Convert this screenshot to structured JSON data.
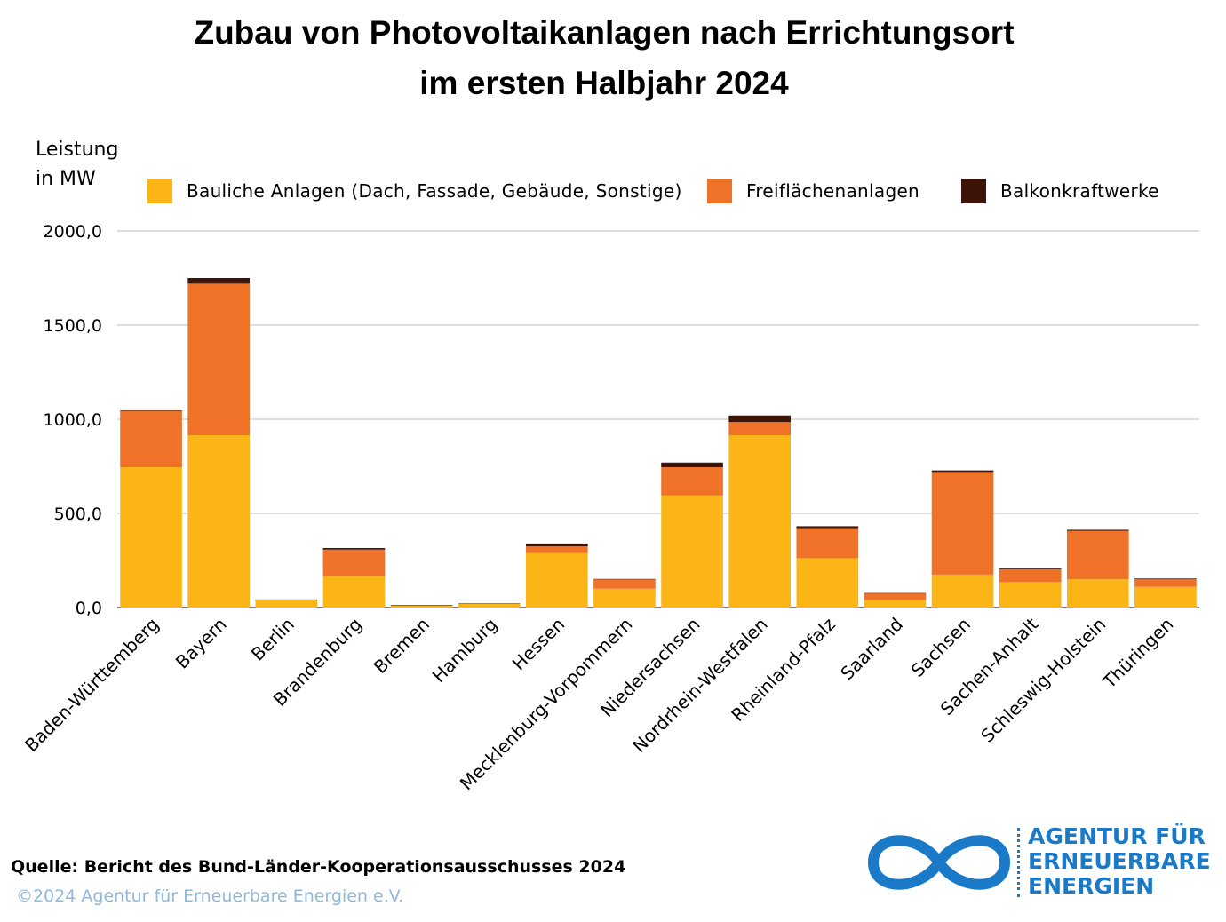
{
  "header": {
    "title_line1": "Zubau von Photovoltaikanlagen nach Errichtungsort",
    "title_line2": "im ersten Halbjahr 2024"
  },
  "chart_data": {
    "type": "bar",
    "stacked": true,
    "ylabel_line1": "Leistung",
    "ylabel_line2": "in MW",
    "ylim": [
      0,
      2000
    ],
    "yticks": [
      "0,0",
      "500,0",
      "1000,0",
      "1500,0",
      "2000,0"
    ],
    "ytick_values": [
      0,
      500,
      1000,
      1500,
      2000
    ],
    "grid": true,
    "legend_position": "top",
    "categories": [
      "Baden-Württemberg",
      "Bayern",
      "Berlin",
      "Brandenburg",
      "Bremen",
      "Hamburg",
      "Hessen",
      "Mecklenburg-Vorpommern",
      "Niedersachsen",
      "Nordrhein-Westfalen",
      "Rheinland-Pfalz",
      "Saarland",
      "Sachsen",
      "Sachen-Anhalt",
      "Schleswig-Holstein",
      "Thüringen"
    ],
    "series": [
      {
        "name": "Bauliche Anlagen (Dach, Fassade, Gebäude, Sonstige)",
        "color": "#fbb516",
        "values": [
          745,
          915,
          40,
          168,
          12,
          20,
          290,
          100,
          595,
          915,
          262,
          40,
          175,
          135,
          150,
          110
        ]
      },
      {
        "name": "Freiflächenanlagen",
        "color": "#f07128",
        "values": [
          300,
          805,
          0,
          140,
          0,
          0,
          35,
          50,
          150,
          70,
          160,
          35,
          545,
          68,
          258,
          40
        ]
      },
      {
        "name": "Balkonkraftwerke",
        "color": "#3c1408",
        "values": [
          2,
          30,
          3,
          8,
          2,
          2,
          15,
          2,
          25,
          35,
          10,
          2,
          8,
          4,
          5,
          4
        ]
      }
    ]
  },
  "footer": {
    "source": "Quelle: Bericht des Bund-Länder-Kooperationsausschusses 2024",
    "copyright": "©2024 Agentur für Erneuerbare Energien e.V."
  },
  "logo": {
    "line1": "AGENTUR FÜR",
    "line2": "ERNEUERBARE",
    "line3": "ENERGIEN",
    "color": "#1a7ac8"
  }
}
